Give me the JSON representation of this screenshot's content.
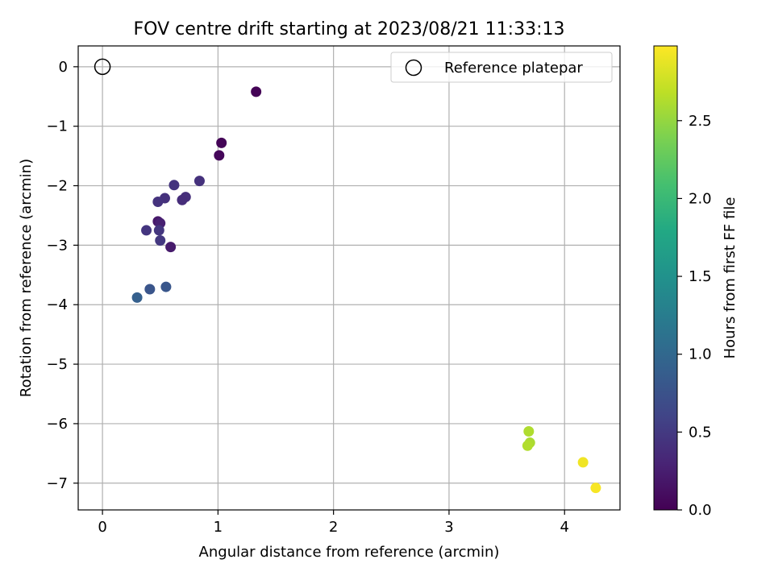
{
  "chart_data": {
    "type": "scatter",
    "title": "FOV centre drift starting at 2023/08/21 11:33:13",
    "xlabel": "Angular distance from reference (arcmin)",
    "ylabel": "Rotation from reference (arcmin)",
    "xlim": [
      -0.21,
      4.48
    ],
    "ylim": [
      -7.45,
      0.35
    ],
    "xticks": [
      0,
      1,
      2,
      3,
      4
    ],
    "yticks": [
      0,
      -1,
      -2,
      -3,
      -4,
      -5,
      -6,
      -7
    ],
    "grid": true,
    "legend": {
      "placement": "top-right",
      "entries": [
        "Reference platepar"
      ]
    },
    "reference_point": {
      "x": 0,
      "y": 0
    },
    "colorbar": {
      "label": "Hours from first FF file",
      "range": [
        0,
        2.98
      ],
      "ticks": [
        "0.0",
        "0.5",
        "1.0",
        "1.5",
        "2.0",
        "2.5"
      ],
      "colormap": "viridis"
    },
    "points": [
      {
        "x": 1.33,
        "y": -0.42,
        "t": 0.02
      },
      {
        "x": 1.03,
        "y": -1.28,
        "t": 0.03
      },
      {
        "x": 1.01,
        "y": -1.49,
        "t": 0.05
      },
      {
        "x": 0.84,
        "y": -1.92,
        "t": 0.42
      },
      {
        "x": 0.62,
        "y": -1.99,
        "t": 0.45
      },
      {
        "x": 0.72,
        "y": -2.19,
        "t": 0.4
      },
      {
        "x": 0.69,
        "y": -2.24,
        "t": 0.38
      },
      {
        "x": 0.54,
        "y": -2.21,
        "t": 0.42
      },
      {
        "x": 0.48,
        "y": -2.27,
        "t": 0.44
      },
      {
        "x": 0.48,
        "y": -2.6,
        "t": 0.2
      },
      {
        "x": 0.5,
        "y": -2.63,
        "t": 0.27
      },
      {
        "x": 0.38,
        "y": -2.75,
        "t": 0.46
      },
      {
        "x": 0.49,
        "y": -2.75,
        "t": 0.47
      },
      {
        "x": 0.5,
        "y": -2.92,
        "t": 0.48
      },
      {
        "x": 0.59,
        "y": -3.03,
        "t": 0.22
      },
      {
        "x": 0.55,
        "y": -3.7,
        "t": 0.8
      },
      {
        "x": 0.41,
        "y": -3.74,
        "t": 0.78
      },
      {
        "x": 0.3,
        "y": -3.88,
        "t": 0.9
      },
      {
        "x": 3.69,
        "y": -6.13,
        "t": 2.62
      },
      {
        "x": 3.7,
        "y": -6.32,
        "t": 2.6
      },
      {
        "x": 3.68,
        "y": -6.37,
        "t": 2.63
      },
      {
        "x": 4.16,
        "y": -6.65,
        "t": 2.92
      },
      {
        "x": 4.27,
        "y": -7.08,
        "t": 2.95
      }
    ]
  }
}
